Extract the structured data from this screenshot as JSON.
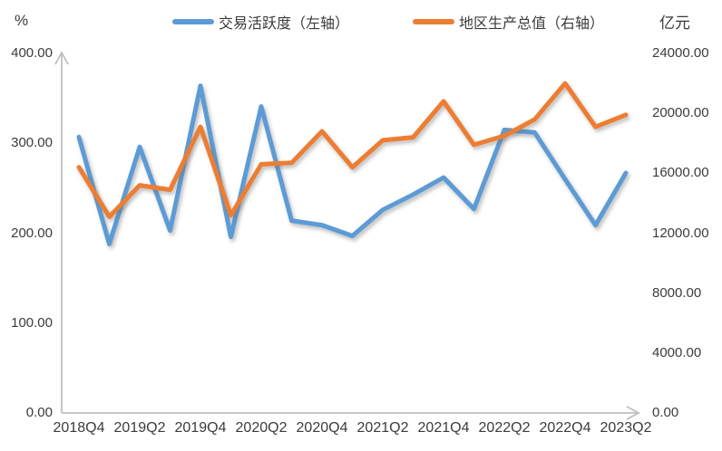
{
  "axis_units": {
    "left": "%",
    "right": "亿元"
  },
  "legend": {
    "items": [
      {
        "label": "交易活跃度（左轴）",
        "color": "#5B9BD5"
      },
      {
        "label": "地区生产总值（右轴）",
        "color": "#ED7D31"
      }
    ]
  },
  "chart_data": {
    "type": "line",
    "title": "",
    "categories": [
      "2018Q4",
      "2019Q1",
      "2019Q2",
      "2019Q3",
      "2019Q4",
      "2020Q1",
      "2020Q2",
      "2020Q3",
      "2020Q4",
      "2021Q1",
      "2021Q2",
      "2021Q3",
      "2021Q4",
      "2022Q1",
      "2022Q2",
      "2022Q3",
      "2022Q4",
      "2023Q1",
      "2023Q2"
    ],
    "x_tick_labels": [
      "2018Q4",
      "2019Q2",
      "2019Q4",
      "2020Q2",
      "2020Q4",
      "2021Q2",
      "2021Q4",
      "2022Q2",
      "2022Q4",
      "2023Q2"
    ],
    "series": [
      {
        "name": "交易活跃度（左轴）",
        "axis": "left",
        "color": "#5B9BD5",
        "values": [
          307,
          188,
          296,
          203,
          364,
          196,
          341,
          214,
          209,
          197,
          226,
          243,
          262,
          227,
          315,
          312,
          260,
          209,
          267
        ]
      },
      {
        "name": "地区生产总值（右轴）",
        "axis": "right",
        "color": "#ED7D31",
        "values": [
          16400,
          13100,
          15200,
          14900,
          19100,
          13200,
          16600,
          16700,
          18800,
          16400,
          18200,
          18400,
          20800,
          17900,
          18500,
          19600,
          22000,
          19100,
          19900
        ]
      }
    ],
    "left_axis": {
      "unit": "%",
      "min": 0,
      "max": 400,
      "tick_labels": [
        "0.00",
        "100.00",
        "200.00",
        "300.00",
        "400.00"
      ]
    },
    "right_axis": {
      "unit": "亿元",
      "min": 0,
      "max": 24000,
      "tick_labels": [
        "0.00",
        "4000.00",
        "8000.00",
        "12000.00",
        "16000.00",
        "20000.00",
        "24000.00"
      ]
    },
    "grid": false,
    "legend_position": "top-center",
    "colors": {
      "axis_line": "#BFBFBF",
      "text": "#3B3B3B"
    }
  }
}
